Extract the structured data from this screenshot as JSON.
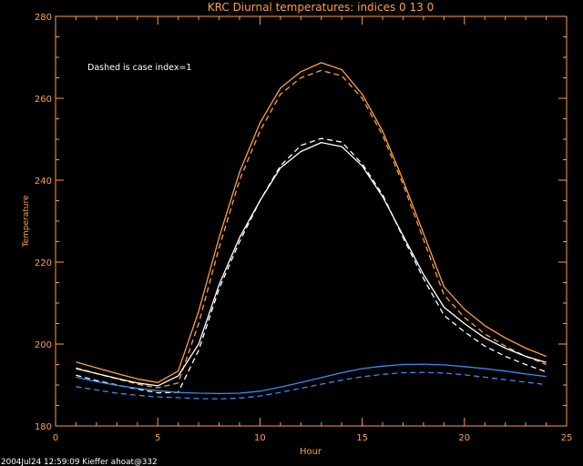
{
  "chart_data": {
    "type": "line",
    "title": "KRC Diurnal temperatures: indices 0 13 0",
    "xlabel": "Hour",
    "ylabel": "Temperature",
    "xlim": [
      0,
      25
    ],
    "ylim": [
      180,
      280
    ],
    "x_ticks": [
      0,
      5,
      10,
      15,
      20,
      25
    ],
    "y_ticks": [
      180,
      200,
      220,
      240,
      260,
      280
    ],
    "grid": false,
    "annotation": "Dashed is case index=1",
    "footer": "2004Jul24 12:59:09 Kieffer ahoat@332",
    "colors": {
      "axes": "#ffa040",
      "background": "#000000",
      "annotation": "#ffffff",
      "footer": "#ffffff"
    },
    "x": [
      1,
      2,
      3,
      4,
      5,
      6,
      7,
      8,
      9,
      10,
      11,
      12,
      13,
      14,
      15,
      16,
      17,
      18,
      19,
      20,
      21,
      22,
      23,
      24
    ],
    "series": [
      {
        "color": "#ffa040",
        "style": "solid",
        "values": [
          195.6,
          194.2,
          192.8,
          191.5,
          190.6,
          193.4,
          208,
          226,
          242,
          254,
          262.5,
          266.5,
          268.7,
          267,
          261,
          252,
          240,
          227,
          214,
          208.5,
          204.5,
          201.5,
          199,
          197
        ]
      },
      {
        "color": "#ffa040",
        "style": "dashed",
        "values": [
          194.2,
          192.8,
          191.5,
          190.2,
          189.3,
          190.5,
          205,
          223.5,
          240,
          252,
          261,
          265,
          266.8,
          265.5,
          260,
          251,
          239,
          225.5,
          212,
          206.5,
          202.5,
          199.5,
          197,
          195
        ]
      },
      {
        "color": "#ffffff",
        "style": "solid",
        "values": [
          194,
          192.8,
          191.6,
          190.5,
          189.8,
          192.2,
          200,
          214.5,
          226,
          235,
          243,
          247,
          249.2,
          248.2,
          243.5,
          236,
          226.5,
          217,
          209,
          205,
          201.5,
          199,
          197,
          195.5
        ]
      },
      {
        "color": "#ffffff",
        "style": "dashed",
        "values": [
          192.4,
          191.1,
          190,
          189,
          188.1,
          188.2,
          198.5,
          213.5,
          225,
          235,
          243.5,
          248.5,
          250.2,
          249.3,
          244,
          236.5,
          226,
          216,
          207,
          203,
          199.5,
          197,
          195,
          193.2
        ]
      },
      {
        "color": "#3090ff",
        "style": "solid",
        "values": [
          191.9,
          190.8,
          189.9,
          189.2,
          188.6,
          188.2,
          188,
          187.9,
          188,
          188.5,
          189.5,
          190.6,
          191.8,
          193,
          194,
          194.6,
          195,
          195.1,
          194.9,
          194.5,
          194,
          193.4,
          192.7,
          192.1
        ]
      },
      {
        "color": "#3090ff",
        "style": "dashed",
        "values": [
          189.6,
          188.8,
          188,
          187.5,
          187.1,
          186.9,
          186.7,
          186.6,
          186.8,
          187.3,
          188.2,
          189.2,
          190.2,
          191.2,
          192,
          192.6,
          193,
          193.1,
          192.9,
          192.5,
          191.9,
          191.3,
          190.7,
          190.1
        ]
      }
    ]
  }
}
